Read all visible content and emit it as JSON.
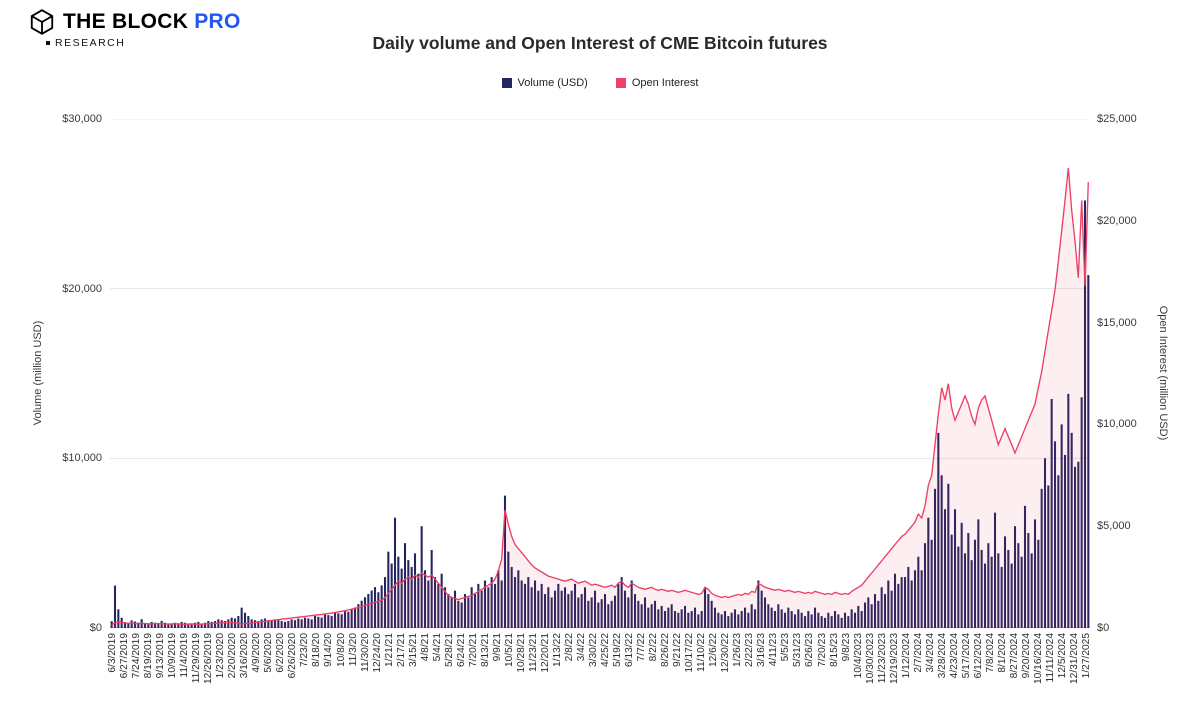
{
  "brand": {
    "primary": "THE BLOCK",
    "suffix": "PRO",
    "sub": "RESEARCH"
  },
  "title": "Daily volume and Open Interest of CME Bitcoin futures",
  "legend": [
    {
      "label": "Volume (USD)",
      "color": "#232560"
    },
    {
      "label": "Open Interest",
      "color": "#ee3f66"
    }
  ],
  "colors": {
    "volume_bar": "#232560",
    "open_interest_line": "#ee3f66",
    "open_interest_fill": "rgba(238,63,102,0.09)",
    "gridline": "#e7e7e7",
    "baseline": "#909090",
    "pro_blue": "#2256f2"
  },
  "chart_data": {
    "type": "bar+line",
    "title": "Daily volume and Open Interest of CME Bitcoin futures",
    "grid": "horizontal",
    "legend_position": "top-center",
    "left_axis": {
      "title": "Volume (million USD)",
      "range": [
        0,
        30000
      ],
      "tick_labels": [
        "$0",
        "$10,000",
        "$20,000",
        "$30,000"
      ],
      "tick_values": [
        0,
        10000,
        20000,
        30000
      ]
    },
    "right_axis": {
      "title": "Open Interest (million USD)",
      "range": [
        0,
        25000
      ],
      "tick_labels": [
        "$0",
        "$5,000",
        "$10,000",
        "$15,000",
        "$20,000",
        "$25,000"
      ],
      "tick_values": [
        0,
        5000,
        10000,
        15000,
        20000,
        25000
      ]
    },
    "x_tick_labels": [
      "6/3/2019",
      "6/27/2019",
      "7/24/2019",
      "8/19/2019",
      "9/13/2019",
      "10/9/2019",
      "11/4/2019",
      "11/29/2019",
      "12/26/2019",
      "1/23/2020",
      "2/20/2020",
      "3/16/2020",
      "4/9/2020",
      "5/6/2020",
      "6/2/2020",
      "6/26/2020",
      "7/23/20",
      "8/18/20",
      "9/14/20",
      "10/8/20",
      "11/3/20",
      "11/30/20",
      "12/24/20",
      "1/21/21",
      "2/17/21",
      "3/15/21",
      "4/8/21",
      "5/4/21",
      "5/28/21",
      "6/24/21",
      "7/20/21",
      "8/13/21",
      "9/9/21",
      "10/5/21",
      "10/28/21",
      "11/23/21",
      "12/20/21",
      "1/13/22",
      "2/8/22",
      "3/4/22",
      "3/30/22",
      "4/25/22",
      "5/19/22",
      "6/13/22",
      "7/7/22",
      "8/2/22",
      "8/26/22",
      "9/21/22",
      "10/17/22",
      "11/10/22",
      "12/6/22",
      "12/30/22",
      "1/26/23",
      "2/22/23",
      "3/16/23",
      "4/11/23",
      "5/5/23",
      "5/31/23",
      "6/26/23",
      "7/20/23",
      "8/15/23",
      "9/8/23",
      "10/4/2023",
      "10/30/2023",
      "11/23/2023",
      "12/19/2023",
      "1/12/2024",
      "2/7/2024",
      "3/4/2024",
      "3/28/2024",
      "4/23/2024",
      "5/17/2024",
      "6/12/2024",
      "7/8/2024",
      "8/1/2024",
      "8/27/2024",
      "9/20/2024",
      "10/16/2024",
      "11/11/2024",
      "12/5/2024",
      "12/31/2024",
      "1/27/2025"
    ],
    "series": [
      {
        "name": "Volume (USD)",
        "type": "bar",
        "axis": "left",
        "color": "#232560",
        "values": [
          400,
          2500,
          1100,
          600,
          350,
          300,
          450,
          380,
          320,
          520,
          280,
          230,
          360,
          310,
          260,
          420,
          310,
          260,
          210,
          310,
          260,
          360,
          310,
          260,
          210,
          310,
          360,
          260,
          310,
          410,
          360,
          410,
          510,
          460,
          410,
          510,
          610,
          560,
          710,
          1200,
          900,
          710,
          510,
          460,
          410,
          510,
          560,
          460,
          410,
          510,
          460,
          410,
          360,
          410,
          510,
          460,
          560,
          510,
          610,
          560,
          510,
          710,
          660,
          610,
          810,
          760,
          710,
          910,
          860,
          810,
          1010,
          960,
          1110,
          1210,
          1410,
          1610,
          1810,
          2010,
          2210,
          2410,
          2110,
          2510,
          3000,
          4500,
          3800,
          6500,
          4200,
          3500,
          5000,
          4000,
          3600,
          4400,
          3200,
          6000,
          3400,
          2800,
          4600,
          3000,
          2600,
          3200,
          2400,
          2000,
          1800,
          2200,
          1600,
          1500,
          2000,
          1800,
          2400,
          2000,
          2600,
          2200,
          2800,
          2400,
          3000,
          2600,
          3400,
          2800,
          7800,
          4500,
          3600,
          3000,
          3400,
          2800,
          2600,
          3000,
          2400,
          2800,
          2200,
          2600,
          2000,
          2400,
          1800,
          2200,
          2600,
          2200,
          2400,
          2000,
          2200,
          2600,
          1800,
          2000,
          2400,
          1600,
          1800,
          2200,
          1500,
          1700,
          2000,
          1400,
          1600,
          1900,
          2600,
          3000,
          2200,
          1800,
          2800,
          2000,
          1600,
          1400,
          1800,
          1200,
          1400,
          1600,
          1100,
          1300,
          1000,
          1200,
          1400,
          1000,
          900,
          1100,
          1300,
          900,
          1000,
          1200,
          800,
          1000,
          2400,
          2000,
          1600,
          1200,
          900,
          800,
          1000,
          700,
          900,
          1100,
          800,
          1000,
          1200,
          900,
          1400,
          1100,
          2800,
          2200,
          1800,
          1400,
          1200,
          1000,
          1400,
          1100,
          900,
          1200,
          1000,
          800,
          1100,
          900,
          700,
          1000,
          800,
          1200,
          900,
          700,
          600,
          900,
          700,
          1000,
          800,
          600,
          900,
          700,
          1100,
          900,
          1300,
          1000,
          1500,
          1800,
          1400,
          2000,
          1600,
          2400,
          2000,
          2800,
          2200,
          3200,
          2600,
          3000,
          3000,
          3600,
          2800,
          3400,
          4200,
          3400,
          5000,
          6500,
          5200,
          8200,
          11500,
          9000,
          7000,
          8500,
          5500,
          7000,
          4800,
          6200,
          4400,
          5600,
          4000,
          5200,
          6400,
          4600,
          3800,
          5000,
          4200,
          6800,
          4400,
          3600,
          5400,
          4600,
          3800,
          6000,
          5000,
          4200,
          7200,
          5600,
          4400,
          6400,
          5200,
          8200,
          10000,
          8400,
          13500,
          11000,
          9000,
          12000,
          10200,
          13800,
          11500,
          9500,
          9800,
          13600,
          25200,
          20800
        ]
      },
      {
        "name": "Open Interest",
        "type": "line",
        "axis": "right",
        "color": "#ee3f66",
        "fill": "rgba(238,63,102,0.09)",
        "values": [
          150,
          260,
          290,
          270,
          250,
          230,
          240,
          220,
          210,
          230,
          220,
          210,
          200,
          210,
          220,
          210,
          200,
          190,
          200,
          210,
          200,
          190,
          180,
          190,
          200,
          190,
          180,
          190,
          200,
          210,
          220,
          230,
          240,
          250,
          260,
          270,
          280,
          260,
          240,
          190,
          210,
          230,
          250,
          270,
          290,
          310,
          330,
          350,
          370,
          390,
          410,
          430,
          450,
          470,
          490,
          510,
          530,
          550,
          570,
          590,
          610,
          630,
          650,
          670,
          690,
          710,
          730,
          760,
          790,
          820,
          850,
          890,
          930,
          970,
          1010,
          1060,
          1110,
          1160,
          1210,
          1260,
          1310,
          1360,
          1500,
          1700,
          1900,
          2100,
          2300,
          2200,
          2400,
          2500,
          2400,
          2600,
          2500,
          2700,
          2600,
          2500,
          2600,
          2400,
          2200,
          2000,
          1800,
          1600,
          1500,
          1450,
          1400,
          1450,
          1500,
          1550,
          1600,
          1700,
          1800,
          1900,
          2000,
          2100,
          2200,
          2400,
          2800,
          3400,
          5800,
          5100,
          4500,
          4100,
          3900,
          3700,
          3500,
          3300,
          3100,
          2950,
          2850,
          2750,
          2650,
          2550,
          2500,
          2450,
          2400,
          2350,
          2300,
          2350,
          2400,
          2300,
          2200,
          2250,
          2300,
          2200,
          2100,
          2150,
          2100,
          2050,
          2000,
          2050,
          2100,
          2000,
          2200,
          2300,
          2100,
          2000,
          2200,
          2100,
          2000,
          1950,
          1900,
          1950,
          2000,
          1900,
          1850,
          1900,
          1850,
          1800,
          1850,
          1800,
          1750,
          1800,
          1850,
          1800,
          1750,
          1700,
          1650,
          1700,
          2000,
          1900,
          1700,
          1600,
          1550,
          1500,
          1550,
          1500,
          1550,
          1600,
          1650,
          1600,
          1700,
          1650,
          1800,
          1750,
          2200,
          2100,
          2000,
          1950,
          1900,
          1850,
          1900,
          1850,
          1800,
          1850,
          1800,
          1750,
          1800,
          1750,
          1700,
          1750,
          1700,
          1800,
          1750,
          1700,
          1650,
          1700,
          1650,
          1750,
          1700,
          1650,
          1700,
          1650,
          1800,
          1900,
          2000,
          2100,
          2300,
          2500,
          2700,
          2900,
          3100,
          3300,
          3500,
          3700,
          3900,
          4100,
          4300,
          4500,
          4600,
          4800,
          5000,
          5200,
          5600,
          5400,
          6000,
          7000,
          7500,
          9000,
          10500,
          11800,
          11200,
          12000,
          10800,
          10200,
          10600,
          11000,
          11400,
          11000,
          10400,
          10000,
          10800,
          11200,
          11400,
          10800,
          10200,
          9600,
          9000,
          9400,
          9800,
          9400,
          9000,
          8600,
          9000,
          9400,
          9800,
          10200,
          10600,
          11000,
          11800,
          12600,
          13600,
          14600,
          15600,
          16600,
          18000,
          19500,
          21000,
          22600,
          20500,
          19000,
          17200,
          21000,
          16800,
          21900
        ]
      }
    ]
  }
}
